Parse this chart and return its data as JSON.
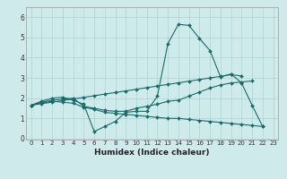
{
  "title": "",
  "xlabel": "Humidex (Indice chaleur)",
  "xlim": [
    -0.5,
    23.5
  ],
  "ylim": [
    -0.05,
    6.5
  ],
  "yticks": [
    0,
    1,
    2,
    3,
    4,
    5,
    6
  ],
  "xticks": [
    0,
    1,
    2,
    3,
    4,
    5,
    6,
    7,
    8,
    9,
    10,
    11,
    12,
    13,
    14,
    15,
    16,
    17,
    18,
    19,
    20,
    21,
    22,
    23
  ],
  "background_color": "#ceeaea",
  "line_color": "#1a6b6b",
  "grid_color": "#aad4d4",
  "line1_y": [
    1.65,
    1.85,
    2.0,
    2.05,
    1.9,
    1.7,
    0.35,
    0.6,
    0.85,
    1.3,
    1.35,
    1.35,
    2.1,
    4.7,
    5.65,
    5.6,
    4.95,
    4.35,
    3.05,
    3.2,
    2.75,
    1.65,
    0.6,
    null
  ],
  "line2_y": [
    1.65,
    1.8,
    1.9,
    1.95,
    2.0,
    1.6,
    1.5,
    1.4,
    1.35,
    1.35,
    1.5,
    1.6,
    1.7,
    1.85,
    1.9,
    2.1,
    2.3,
    2.5,
    2.65,
    2.75,
    2.8,
    2.85,
    null,
    null
  ],
  "line3_y": [
    1.65,
    1.75,
    1.85,
    1.8,
    1.75,
    1.55,
    1.45,
    1.3,
    1.25,
    1.2,
    1.15,
    1.1,
    1.05,
    1.0,
    1.0,
    0.95,
    0.9,
    0.85,
    0.8,
    0.75,
    0.7,
    0.65,
    0.6,
    null
  ],
  "line4_y": [
    1.65,
    1.73,
    1.8,
    1.88,
    1.96,
    2.04,
    2.12,
    2.2,
    2.28,
    2.36,
    2.44,
    2.52,
    2.6,
    2.68,
    2.76,
    2.84,
    2.92,
    3.0,
    3.08,
    3.16,
    3.1,
    null,
    null,
    null
  ]
}
